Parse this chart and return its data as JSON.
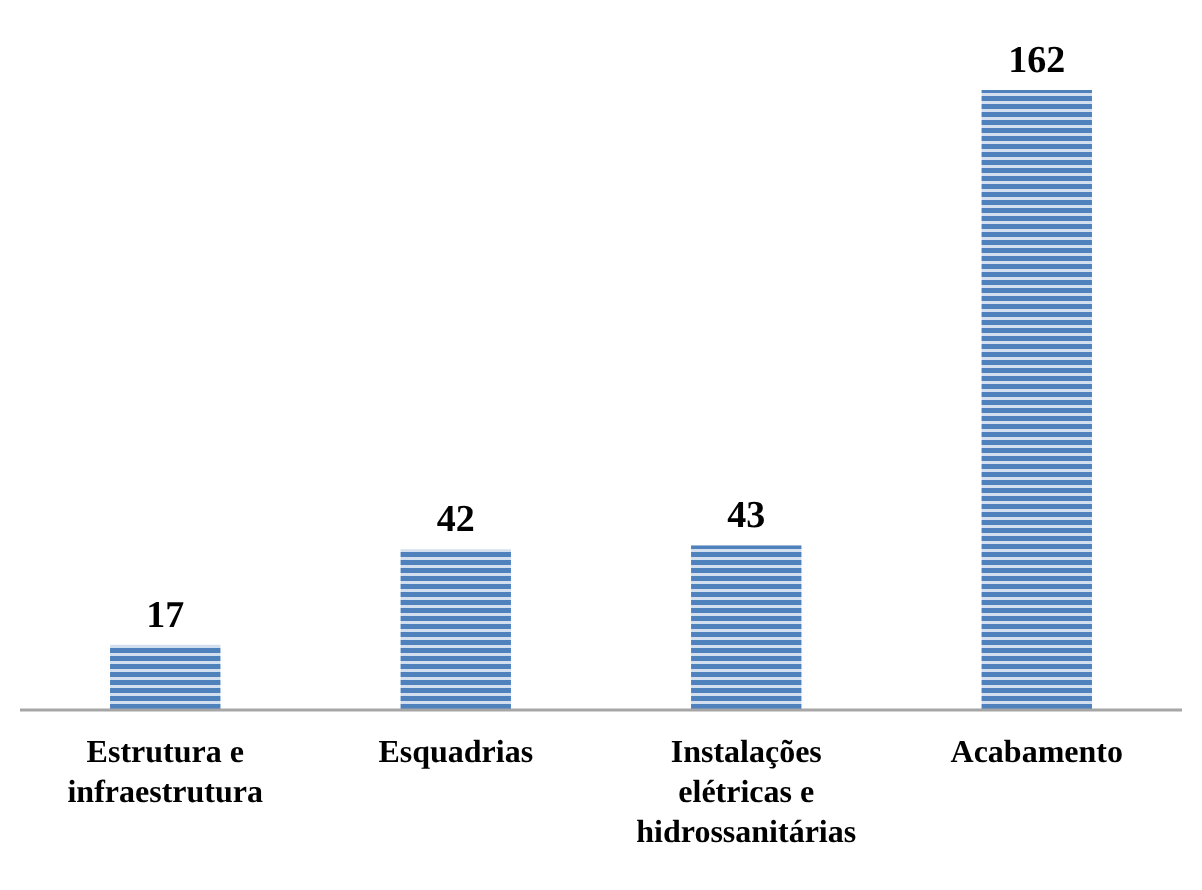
{
  "chart_data": {
    "type": "bar",
    "categories": [
      "Estrutura e infraestrutura",
      "Esquadrias",
      "Instalações elétricas e hidrossanitárias",
      "Acabamento"
    ],
    "values": [
      17,
      42,
      43,
      162
    ],
    "color": "#4f81bd",
    "data_labels": true
  }
}
